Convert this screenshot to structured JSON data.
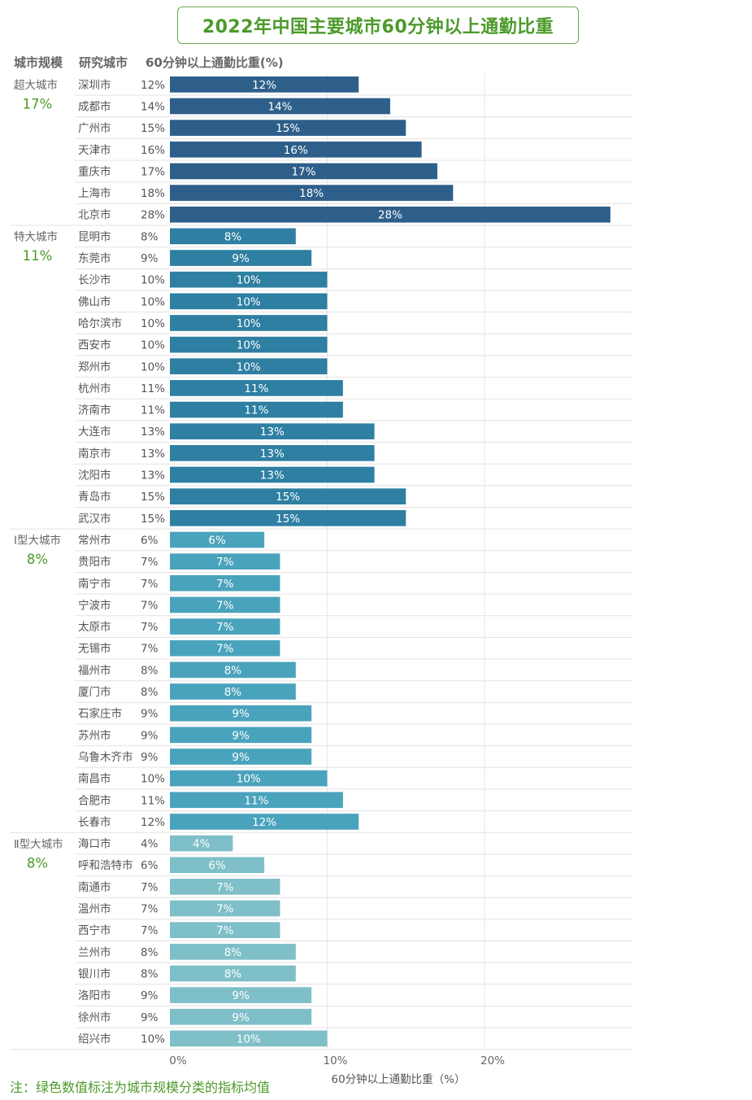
{
  "title": "2022年中国主要城市60分钟以上通勤比重",
  "headers": {
    "scale": "城市规模",
    "city": "研究城市",
    "metric": "60分钟以上通勤比重(%)"
  },
  "note": "注：绿色数值标注为城市规模分类的指标均值",
  "colors": {
    "super": "#2e5f8a",
    "mega": "#2e7fa2",
    "type1": "#4aa3bc",
    "type2": "#7fbfc8",
    "group_avg": "#4c9a2a"
  },
  "chart_data": {
    "type": "bar",
    "orientation": "horizontal",
    "xlabel": "60分钟以上通勤比重（%）",
    "xlim": [
      0,
      30
    ],
    "xticks": [
      "0%",
      "10%",
      "20%"
    ],
    "grid": true,
    "groups": [
      {
        "name": "超大城市",
        "avg": "17%",
        "color_key": "super",
        "cities": [
          "深圳市",
          "成都市",
          "广州市",
          "天津市",
          "重庆市",
          "上海市",
          "北京市"
        ],
        "values": [
          12,
          14,
          15,
          16,
          17,
          18,
          28
        ]
      },
      {
        "name": "特大城市",
        "avg": "11%",
        "color_key": "mega",
        "cities": [
          "昆明市",
          "东莞市",
          "长沙市",
          "佛山市",
          "哈尔滨市",
          "西安市",
          "郑州市",
          "杭州市",
          "济南市",
          "大连市",
          "南京市",
          "沈阳市",
          "青岛市",
          "武汉市"
        ],
        "values": [
          8,
          9,
          10,
          10,
          10,
          10,
          10,
          11,
          11,
          13,
          13,
          13,
          15,
          15
        ]
      },
      {
        "name": "Ⅰ型大城市",
        "avg": "8%",
        "color_key": "type1",
        "cities": [
          "常州市",
          "贵阳市",
          "南宁市",
          "宁波市",
          "太原市",
          "无锡市",
          "福州市",
          "厦门市",
          "石家庄市",
          "苏州市",
          "乌鲁木齐市",
          "南昌市",
          "合肥市",
          "长春市"
        ],
        "values": [
          6,
          7,
          7,
          7,
          7,
          7,
          8,
          8,
          9,
          9,
          9,
          10,
          11,
          12
        ]
      },
      {
        "name": "Ⅱ型大城市",
        "avg": "8%",
        "color_key": "type2",
        "cities": [
          "海口市",
          "呼和浩特市",
          "南通市",
          "温州市",
          "西宁市",
          "兰州市",
          "银川市",
          "洛阳市",
          "徐州市",
          "绍兴市"
        ],
        "values": [
          4,
          6,
          7,
          7,
          7,
          8,
          8,
          9,
          9,
          10
        ]
      }
    ]
  }
}
